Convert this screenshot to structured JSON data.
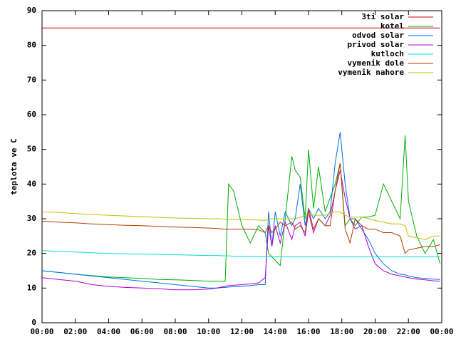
{
  "chart_data": {
    "type": "line",
    "y_label": "teplota ve C",
    "x": [
      "00:00",
      "01:00",
      "02:00",
      "03:00",
      "04:00",
      "05:00",
      "06:00",
      "07:00",
      "08:00",
      "09:00",
      "10:00",
      "10:30",
      "11:00",
      "11:12",
      "11:30",
      "12:00",
      "12:30",
      "13:00",
      "13:24",
      "13:36",
      "13:48",
      "14:00",
      "14:18",
      "14:36",
      "15:00",
      "15:12",
      "15:30",
      "15:48",
      "16:00",
      "16:18",
      "16:36",
      "17:00",
      "17:18",
      "17:36",
      "17:54",
      "18:12",
      "18:30",
      "18:48",
      "19:12",
      "19:36",
      "20:00",
      "20:30",
      "21:00",
      "21:30",
      "21:48",
      "22:00",
      "22:30",
      "23:00",
      "23:30",
      "23:54"
    ],
    "xlim": [
      "00:00",
      "24:00"
    ],
    "xticks": [
      "00:00",
      "02:00",
      "04:00",
      "06:00",
      "08:00",
      "10:00",
      "12:00",
      "14:00",
      "16:00",
      "18:00",
      "20:00",
      "22:00",
      "00:00"
    ],
    "ylim": [
      0,
      90
    ],
    "yticks": [
      0,
      10,
      20,
      30,
      40,
      50,
      60,
      70,
      80,
      90
    ],
    "legend": "top-right",
    "series": [
      {
        "name": "3ti solar",
        "color": "#cc0000",
        "values": [
          85,
          85,
          85,
          85,
          85,
          85,
          85,
          85,
          85,
          85,
          85,
          85,
          85,
          85,
          85,
          85,
          85,
          85,
          85,
          85,
          85,
          85,
          85,
          85,
          85,
          85,
          85,
          85,
          85,
          85,
          85,
          85,
          85,
          85,
          85,
          85,
          85,
          85,
          85,
          85,
          85,
          85,
          85,
          85,
          85,
          85,
          85,
          85,
          85,
          85
        ]
      },
      {
        "name": "kotel",
        "color": "#00b000",
        "values": [
          15,
          14.5,
          14,
          13.6,
          13.2,
          13,
          12.8,
          12.5,
          12.4,
          12.2,
          12,
          12,
          12,
          40,
          38,
          28,
          23,
          28,
          26,
          20,
          19,
          18,
          16.5,
          30,
          48,
          44,
          42,
          30,
          50,
          33,
          45,
          32,
          36,
          40,
          46,
          28,
          30,
          28,
          30.5,
          30.5,
          31,
          40,
          35,
          30,
          54,
          35,
          25,
          20,
          24,
          17
        ]
      },
      {
        "name": "odvod solar",
        "color": "#0070e0",
        "values": [
          15,
          14.5,
          14,
          13.5,
          13,
          12.5,
          12,
          11.5,
          11,
          10.5,
          10,
          10,
          10.2,
          10.3,
          10.4,
          10.5,
          10.7,
          11,
          11,
          32,
          22,
          32,
          25,
          32,
          28,
          30,
          40,
          28,
          33,
          30,
          33,
          30,
          32,
          46,
          55,
          40,
          30,
          30,
          27,
          24,
          20,
          17,
          15,
          14,
          13.8,
          13.5,
          13,
          12.8,
          12.6,
          12.5
        ]
      },
      {
        "name": "privod solar",
        "color": "#b000d0",
        "values": [
          13,
          12.5,
          12,
          11,
          10.5,
          10.2,
          10,
          9.8,
          9.5,
          9.5,
          9.7,
          10,
          10.5,
          10.7,
          10.8,
          11,
          11.2,
          11.5,
          13,
          28,
          22,
          28,
          23,
          29,
          24,
          28,
          29,
          25,
          32,
          26,
          30,
          28,
          31,
          38,
          44,
          36,
          30,
          27,
          28,
          22,
          17,
          15,
          14,
          13.5,
          13.2,
          13,
          12.6,
          12.4,
          12.1,
          12
        ]
      },
      {
        "name": "kutloch",
        "color": "#00dddd",
        "values": [
          20.8,
          20.6,
          20.4,
          20.2,
          20,
          19.9,
          19.8,
          19.7,
          19.6,
          19.5,
          19.4,
          19.4,
          19.3,
          19.3,
          19.2,
          19.2,
          19.1,
          19.1,
          19,
          19,
          19,
          19,
          19,
          19,
          19,
          19,
          19,
          19,
          19,
          19,
          19,
          19,
          19,
          19,
          19,
          19,
          19,
          19,
          19,
          19,
          19,
          19,
          19,
          19,
          19,
          19,
          19,
          19,
          19,
          19
        ]
      },
      {
        "name": "vymenik dole",
        "color": "#b04000",
        "values": [
          29.3,
          29,
          28.8,
          28.5,
          28.3,
          28.1,
          28,
          27.8,
          27.6,
          27.5,
          27.3,
          27.2,
          27,
          27,
          27,
          27,
          27,
          26.8,
          26,
          28,
          26,
          27,
          29,
          28,
          29,
          27,
          28,
          26,
          33,
          27,
          30,
          28,
          28,
          38,
          46,
          27,
          23,
          30,
          28,
          27,
          27,
          26,
          26,
          25,
          20,
          21,
          21.5,
          22,
          22,
          22.5
        ]
      },
      {
        "name": "vymenik nahore",
        "color": "#c0c000",
        "values": [
          32,
          31.8,
          31.5,
          31.2,
          31,
          30.8,
          30.6,
          30.4,
          30.2,
          30.1,
          30,
          30,
          29.9,
          29.9,
          29.8,
          29.8,
          29.7,
          29.6,
          29.5,
          29.8,
          30,
          30,
          30,
          30,
          30,
          30,
          30.5,
          31,
          31.5,
          31,
          31,
          31,
          31.5,
          32,
          32,
          31,
          30.5,
          30.5,
          30.5,
          30,
          29.5,
          29,
          28.5,
          28.5,
          28,
          25,
          24.5,
          24,
          25,
          25
        ]
      }
    ]
  }
}
